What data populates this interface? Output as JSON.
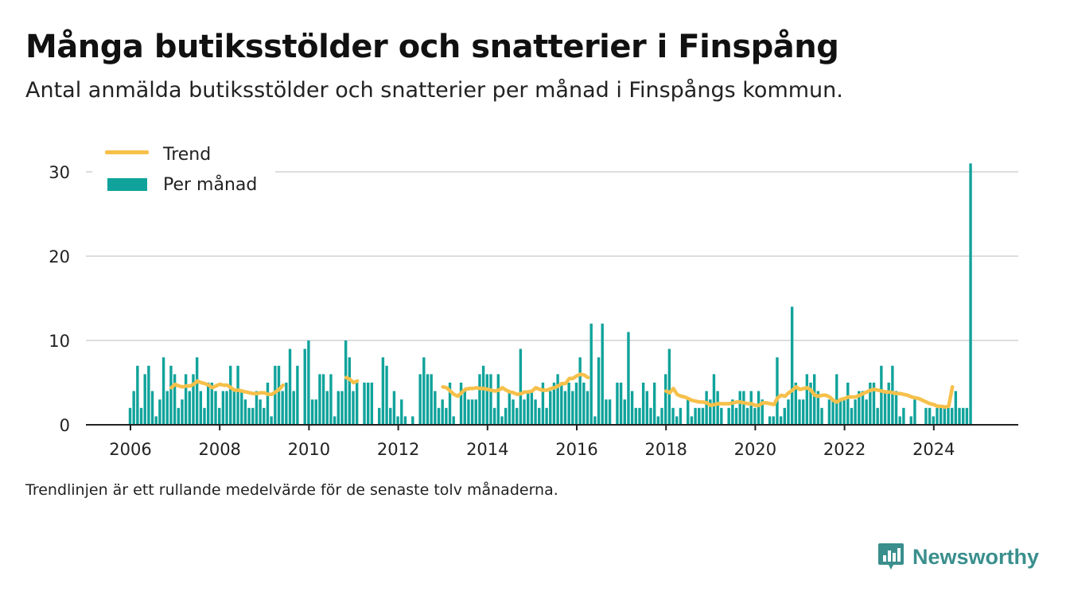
{
  "header": {
    "title": "Många butiksstölder och snatterier i Finspång",
    "subtitle": "Antal anmälda butiksstölder och snatterier per månad i Finspångs kommun."
  },
  "footer": {
    "note": "Trendlinjen är ett rullande medelvärde för de senaste tolv månaderna.",
    "brand": "Newsworthy"
  },
  "colors": {
    "bars": "#10a39b",
    "trend": "#f6c04a",
    "grid": "#dddddd",
    "brand": "#3a8f8d"
  },
  "icons": {
    "brand": "newsworthy-chat-bars-icon"
  },
  "chart_data": {
    "type": "bar",
    "legend": [
      {
        "name": "Trend",
        "kind": "line"
      },
      {
        "name": "Per månad",
        "kind": "bar"
      }
    ],
    "legend_position": "top-left",
    "grid": true,
    "ylim": [
      0,
      32
    ],
    "y_ticks": [
      "0",
      "10",
      "20",
      "30"
    ],
    "x_ticks": [
      "2006",
      "2008",
      "2010",
      "2012",
      "2014",
      "2016",
      "2018",
      "2020",
      "2022",
      "2024"
    ],
    "x_start": "2006-01",
    "series": [
      {
        "name": "Per månad",
        "values": [
          2,
          4,
          7,
          2,
          6,
          7,
          4,
          1,
          3,
          8,
          4,
          7,
          6,
          2,
          3,
          6,
          4,
          6,
          8,
          4,
          2,
          5,
          5,
          4,
          2,
          4,
          4,
          7,
          4,
          7,
          4,
          3,
          2,
          2,
          4,
          3,
          2,
          5,
          1,
          7,
          7,
          4,
          5,
          9,
          4,
          7,
          0,
          9,
          10,
          3,
          3,
          6,
          6,
          4,
          6,
          1,
          4,
          4,
          10,
          8,
          4,
          5,
          0,
          5,
          5,
          5,
          0,
          2,
          8,
          7,
          2,
          4,
          1,
          3,
          1,
          0,
          1,
          0,
          6,
          8,
          6,
          6,
          4,
          2,
          3,
          2,
          5,
          1,
          0,
          5,
          4,
          3,
          3,
          3,
          6,
          7,
          6,
          6,
          2,
          6,
          1,
          2,
          4,
          3,
          2,
          9,
          3,
          4,
          4,
          3,
          2,
          5,
          2,
          4,
          5,
          6,
          5,
          4,
          5,
          4,
          5,
          8,
          5,
          4,
          12,
          1,
          8,
          12,
          3,
          3,
          0,
          5,
          5,
          3,
          11,
          4,
          2,
          2,
          5,
          4,
          2,
          5,
          1,
          2,
          6,
          9,
          2,
          1,
          2,
          0,
          3,
          1,
          2,
          2,
          2,
          4,
          3,
          6,
          4,
          2,
          0,
          2,
          3,
          2,
          4,
          4,
          2,
          4,
          2,
          4,
          3,
          0,
          1,
          1,
          8,
          1,
          2,
          3,
          14,
          5,
          3,
          3,
          6,
          5,
          6,
          4,
          2,
          0,
          3,
          3,
          6,
          3,
          3,
          5,
          2,
          3,
          4,
          4,
          3,
          5,
          5,
          2,
          7,
          4,
          5,
          7,
          4,
          1,
          2,
          0,
          1,
          3,
          0,
          0,
          2,
          2,
          1,
          2,
          2,
          2,
          2,
          2,
          4,
          2,
          2,
          2,
          31
        ]
      },
      {
        "name": "Trend",
        "values": [
          null,
          null,
          null,
          null,
          null,
          null,
          null,
          null,
          null,
          null,
          null,
          4.4,
          4.8,
          4.6,
          4.5,
          4.6,
          4.6,
          4.8,
          5.2,
          5.0,
          4.9,
          4.7,
          4.4,
          4.6,
          4.8,
          4.7,
          4.7,
          4.4,
          4.1,
          4.1,
          4.0,
          3.9,
          3.8,
          3.7,
          3.7,
          3.8,
          3.8,
          3.6,
          3.6,
          3.9,
          4.2,
          4.7,
          null,
          null,
          null,
          null,
          null,
          null,
          null,
          null,
          null,
          null,
          null,
          null,
          null,
          null,
          null,
          null,
          5.6,
          5.4,
          5.0,
          5.2,
          null,
          null,
          null,
          null,
          null,
          null,
          null,
          null,
          null,
          null,
          null,
          null,
          null,
          null,
          null,
          null,
          null,
          null,
          null,
          null,
          null,
          null,
          4.5,
          4.4,
          4.0,
          3.6,
          3.4,
          3.8,
          4.2,
          4.3,
          4.3,
          4.4,
          4.3,
          4.3,
          4.2,
          4.1,
          4.0,
          4.1,
          4.4,
          4.1,
          3.9,
          3.8,
          3.6,
          3.7,
          3.9,
          3.9,
          4.0,
          4.4,
          4.2,
          4.1,
          4.1,
          4.3,
          4.4,
          4.6,
          4.9,
          4.9,
          5.5,
          5.5,
          5.8,
          6.0,
          5.9,
          5.6,
          null,
          null,
          null,
          null,
          null,
          null,
          null,
          null,
          null,
          null,
          null,
          null,
          null,
          null,
          null,
          null,
          null,
          null,
          null,
          null,
          4.0,
          3.8,
          4.3,
          3.6,
          3.4,
          3.3,
          3.1,
          2.9,
          2.8,
          2.7,
          2.7,
          2.6,
          2.3,
          2.4,
          2.5,
          2.5,
          2.5,
          2.5,
          2.6,
          2.7,
          2.7,
          2.6,
          2.5,
          2.5,
          2.3,
          2.3,
          2.6,
          2.6,
          2.5,
          2.4,
          3.2,
          3.5,
          3.4,
          3.8,
          4.1,
          4.5,
          4.2,
          4.3,
          4.4,
          4.1,
          3.5,
          3.4,
          3.5,
          3.5,
          3.3,
          2.9,
          2.7,
          3.0,
          3.1,
          3.3,
          3.3,
          3.3,
          3.5,
          3.7,
          3.9,
          4.1,
          4.2,
          4.1,
          4.0,
          3.9,
          3.9,
          3.8,
          3.7,
          3.7,
          3.6,
          3.5,
          3.3,
          3.2,
          3.1,
          2.9,
          2.7,
          2.5,
          2.4,
          2.2,
          2.2,
          2.1,
          2.2,
          4.5
        ]
      }
    ]
  }
}
